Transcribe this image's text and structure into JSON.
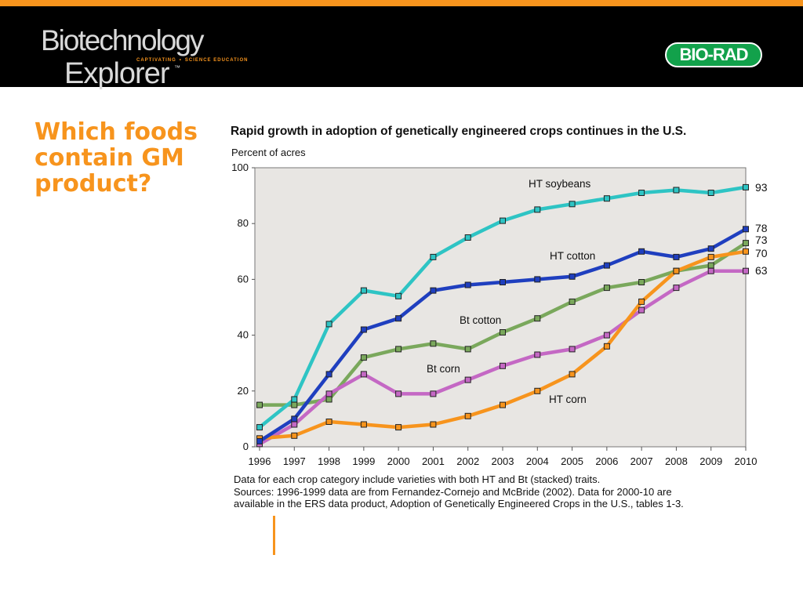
{
  "header": {
    "logo_line1": "Biotechnology",
    "logo_line2": "Explorer",
    "logo_tm": "™",
    "tagline_left": "CAPTIVATING",
    "tagline_right": "SCIENCE EDUCATION",
    "brand": "BIO-RAD"
  },
  "slide": {
    "title": "Which foods contain GM product?"
  },
  "notes": {
    "line1": "Data for each crop category include varieties with both HT and Bt (stacked) traits.",
    "line2": "Sources: 1996-1999 data are from Fernandez-Cornejo and McBride (2002). Data for 2000-10 are",
    "line3": "available in the ERS data product, Adoption of Genetically Engineered Crops in the U.S., tables 1-3."
  },
  "colors": {
    "accent": "#f7941d",
    "banner": "#000000",
    "brand_green": "#12a14b",
    "plot_bg": "#e8e6e3"
  },
  "chart_data": {
    "type": "line",
    "title": "Rapid growth in adoption of genetically engineered crops continues in the U.S.",
    "ylabel": "Percent of acres",
    "xlabel": "",
    "ylim": [
      0,
      100
    ],
    "yticks": [
      0,
      20,
      40,
      60,
      80,
      100
    ],
    "x": [
      1996,
      1997,
      1998,
      1999,
      2000,
      2001,
      2002,
      2003,
      2004,
      2005,
      2006,
      2007,
      2008,
      2009,
      2010
    ],
    "grid": false,
    "series": [
      {
        "name": "HT soybeans",
        "color": "#2ec4c4",
        "values": [
          7,
          17,
          44,
          56,
          54,
          68,
          75,
          81,
          85,
          87,
          89,
          91,
          92,
          91,
          93
        ],
        "end_label": "93"
      },
      {
        "name": "HT cotton",
        "color": "#1f3fbf",
        "values": [
          2,
          10,
          26,
          42,
          46,
          56,
          58,
          59,
          60,
          61,
          65,
          70,
          68,
          71,
          78
        ],
        "end_label": "78"
      },
      {
        "name": "Bt cotton",
        "color": "#7aa85c",
        "values": [
          15,
          15,
          17,
          32,
          35,
          37,
          35,
          41,
          46,
          52,
          57,
          59,
          63,
          65,
          73
        ],
        "end_label": "73"
      },
      {
        "name": "Bt corn",
        "color": "#c468c4",
        "values": [
          1,
          8,
          19,
          26,
          19,
          19,
          24,
          29,
          33,
          35,
          40,
          49,
          57,
          63,
          63
        ],
        "end_label": "63"
      },
      {
        "name": "HT corn",
        "color": "#f7941d",
        "values": [
          3,
          4,
          9,
          8,
          7,
          8,
          11,
          15,
          20,
          26,
          36,
          52,
          63,
          68,
          70
        ],
        "end_label": "70"
      }
    ]
  }
}
